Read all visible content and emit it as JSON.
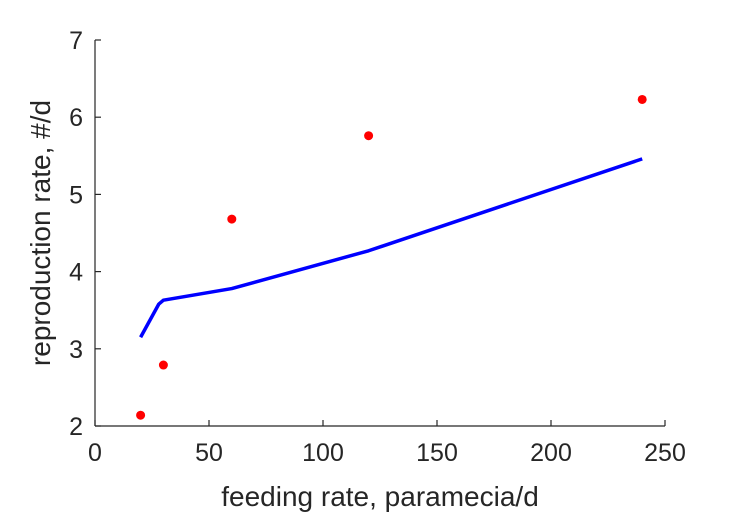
{
  "chart_data": {
    "type": "line",
    "title": "",
    "xlabel": "feeding rate, paramecia/d",
    "ylabel": "reproduction rate, #/d",
    "xlim": [
      0,
      250
    ],
    "ylim": [
      2,
      7
    ],
    "xticks": [
      "0",
      "50",
      "100",
      "150",
      "200",
      "250"
    ],
    "yticks": [
      "2",
      "3",
      "4",
      "5",
      "6",
      "7"
    ],
    "grid": false,
    "legend": "none",
    "series": [
      {
        "kind": "scatter",
        "color": "#ff0000",
        "x": [
          20,
          30,
          60,
          120,
          240
        ],
        "y": [
          2.14,
          2.79,
          4.68,
          5.76,
          6.23
        ]
      },
      {
        "kind": "line",
        "color": "#0000ff",
        "x": [
          20,
          28,
          30,
          60,
          120,
          240
        ],
        "y": [
          3.15,
          3.58,
          3.63,
          3.78,
          4.27,
          5.46
        ]
      }
    ]
  }
}
